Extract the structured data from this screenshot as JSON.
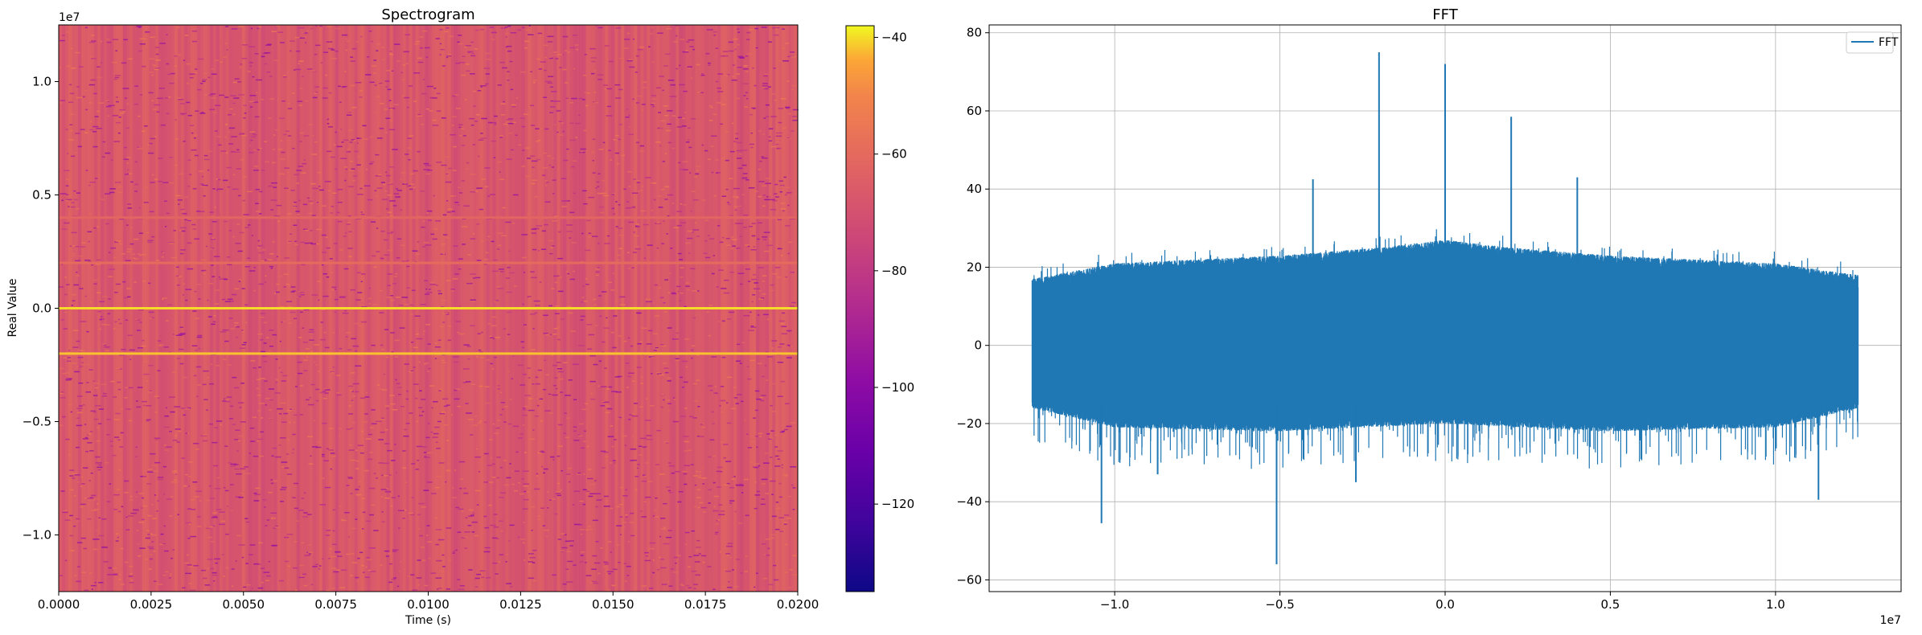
{
  "chart_data": [
    {
      "type": "heatmap",
      "title": "Spectrogram",
      "xlabel": "Time (s)",
      "ylabel": "Real Value",
      "xlim": [
        0,
        0.02
      ],
      "ylim": [
        -1.25,
        1.25
      ],
      "y_offset_label": "1e7",
      "x_ticks": [
        0.0,
        0.0025,
        0.005,
        0.0075,
        0.01,
        0.0125,
        0.015,
        0.0175,
        0.02
      ],
      "x_tick_labels": [
        "0.0000",
        "0.0025",
        "0.0050",
        "0.0075",
        "0.0100",
        "0.0125",
        "0.0150",
        "0.0175",
        "0.0200"
      ],
      "y_ticks": [
        -1.0,
        -0.5,
        0.0,
        0.5,
        1.0
      ],
      "y_tick_labels": [
        "−1.0",
        "−0.5",
        "0.0",
        "0.5",
        "1.0"
      ],
      "colormap": "plasma",
      "background_level_db": -75,
      "bright_lines": [
        {
          "y": 0.0,
          "level_db": -42
        },
        {
          "y": -0.2,
          "level_db": -45
        },
        {
          "y": 0.2,
          "level_db": -68
        },
        {
          "y": 0.4,
          "level_db": -70
        }
      ],
      "colorbar": {
        "range": [
          -135,
          -38
        ],
        "ticks": [
          -40,
          -60,
          -80,
          -100,
          -120
        ],
        "tick_labels": [
          "−40",
          "−60",
          "−80",
          "−100",
          "−120"
        ]
      }
    },
    {
      "type": "line",
      "title": "FFT",
      "xlabel": "",
      "ylabel": "",
      "xlim": [
        -1.38,
        1.38
      ],
      "ylim": [
        -63,
        82
      ],
      "x_offset_label": "1e7",
      "x_ticks": [
        -1.0,
        -0.5,
        0.0,
        0.5,
        1.0
      ],
      "x_tick_labels": [
        "−1.0",
        "−0.5",
        "0.0",
        "0.5",
        "1.0"
      ],
      "y_ticks": [
        -60,
        -40,
        -20,
        0,
        20,
        40,
        60,
        80
      ],
      "y_tick_labels": [
        "−60",
        "−40",
        "−20",
        "0",
        "20",
        "40",
        "60",
        "80"
      ],
      "grid": true,
      "legend": {
        "position": "top-right",
        "entries": [
          "FFT"
        ]
      },
      "series": [
        {
          "name": "FFT",
          "color": "#1f77b4",
          "x_range": [
            -1.25,
            1.25
          ],
          "envelope_upper": [
            [
              -1.25,
              17
            ],
            [
              -1.0,
              21
            ],
            [
              -0.5,
              23
            ],
            [
              -0.2,
              25
            ],
            [
              0.0,
              27
            ],
            [
              0.2,
              25
            ],
            [
              0.5,
              23
            ],
            [
              1.0,
              21
            ],
            [
              1.25,
              18
            ]
          ],
          "envelope_lower": [
            [
              -1.25,
              -16
            ],
            [
              -1.0,
              -21
            ],
            [
              -0.5,
              -22
            ],
            [
              0.0,
              -20
            ],
            [
              0.5,
              -22
            ],
            [
              1.0,
              -21
            ],
            [
              1.25,
              -16
            ]
          ],
          "peaks": [
            [
              -2000000,
              75
            ],
            [
              0,
              72
            ],
            [
              2000000,
              58.5
            ],
            [
              -4000000,
              42.5
            ],
            [
              4000000,
              43
            ]
          ],
          "dips": [
            [
              -5100000,
              -56
            ],
            [
              -10400000,
              -45.5
            ],
            [
              11300000,
              -39.5
            ],
            [
              -8700000,
              -33
            ],
            [
              -2700000,
              -35
            ]
          ]
        }
      ]
    }
  ]
}
